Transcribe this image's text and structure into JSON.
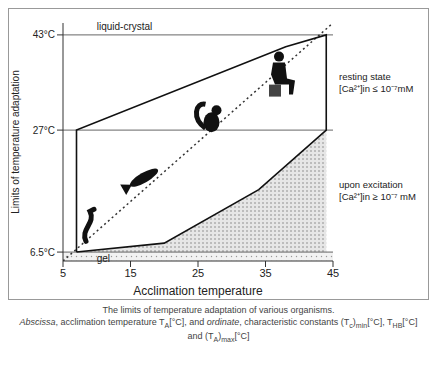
{
  "chart_data": {
    "type": "line",
    "x_label": "Acclimation temperature",
    "y_label": "Limits of temperature adaptation",
    "xlim": [
      5,
      45
    ],
    "xticks": [
      5,
      15,
      25,
      35,
      45
    ],
    "ylim": [
      5,
      45
    ],
    "yticks": [
      {
        "value": 6.5,
        "label": "6.5°C"
      },
      {
        "value": 27,
        "label": "27°C"
      },
      {
        "value": 43,
        "label": "43°C"
      }
    ],
    "outline": {
      "x": [
        7,
        7,
        38,
        44,
        44,
        34,
        20,
        7
      ],
      "values": [
        6.5,
        27,
        41,
        43,
        27,
        17,
        8,
        6.5
      ]
    },
    "excitation_region": {
      "x": [
        7,
        20,
        34,
        44
      ],
      "low": [
        6.5,
        6.5,
        6.5,
        6.5
      ],
      "high": [
        6.5,
        8,
        17,
        27
      ]
    },
    "gel_region": [
      5,
      6.5
    ],
    "diagonal": {
      "x": [
        5,
        45
      ],
      "values": [
        5,
        45
      ],
      "line_style": "dotted"
    },
    "zone_labels": {
      "top": "liquid-crystal",
      "bottom": "gel"
    },
    "state_labels": [
      {
        "title": "resting state",
        "condition": "[Ca²⁺]in ≤ 10⁻⁷mM"
      },
      {
        "title": "upon excitation",
        "condition": "[Ca²⁺]in ≥ 10⁻⁷ mM"
      }
    ],
    "caption": "The limits of temperature adaptation of various organisms.",
    "caption_detail": [
      {
        "text": "Abscissa",
        "italic": true
      },
      {
        "text": ", acclimation temperature T"
      },
      {
        "text": "A",
        "sub": true
      },
      {
        "text": "[°C], and "
      },
      {
        "text": "ordinate",
        "italic": true
      },
      {
        "text": ", characteristic constants (T"
      },
      {
        "text": "c",
        "sub": true
      },
      {
        "text": ")"
      },
      {
        "text": "min",
        "sub": true
      },
      {
        "text": "[°C], T"
      },
      {
        "text": "HB",
        "sub": true
      },
      {
        "text": "[°C] and (T"
      },
      {
        "text": "A",
        "sub": true
      },
      {
        "text": ")"
      },
      {
        "text": "max",
        "sub": true
      },
      {
        "text": "[°C]"
      }
    ]
  }
}
